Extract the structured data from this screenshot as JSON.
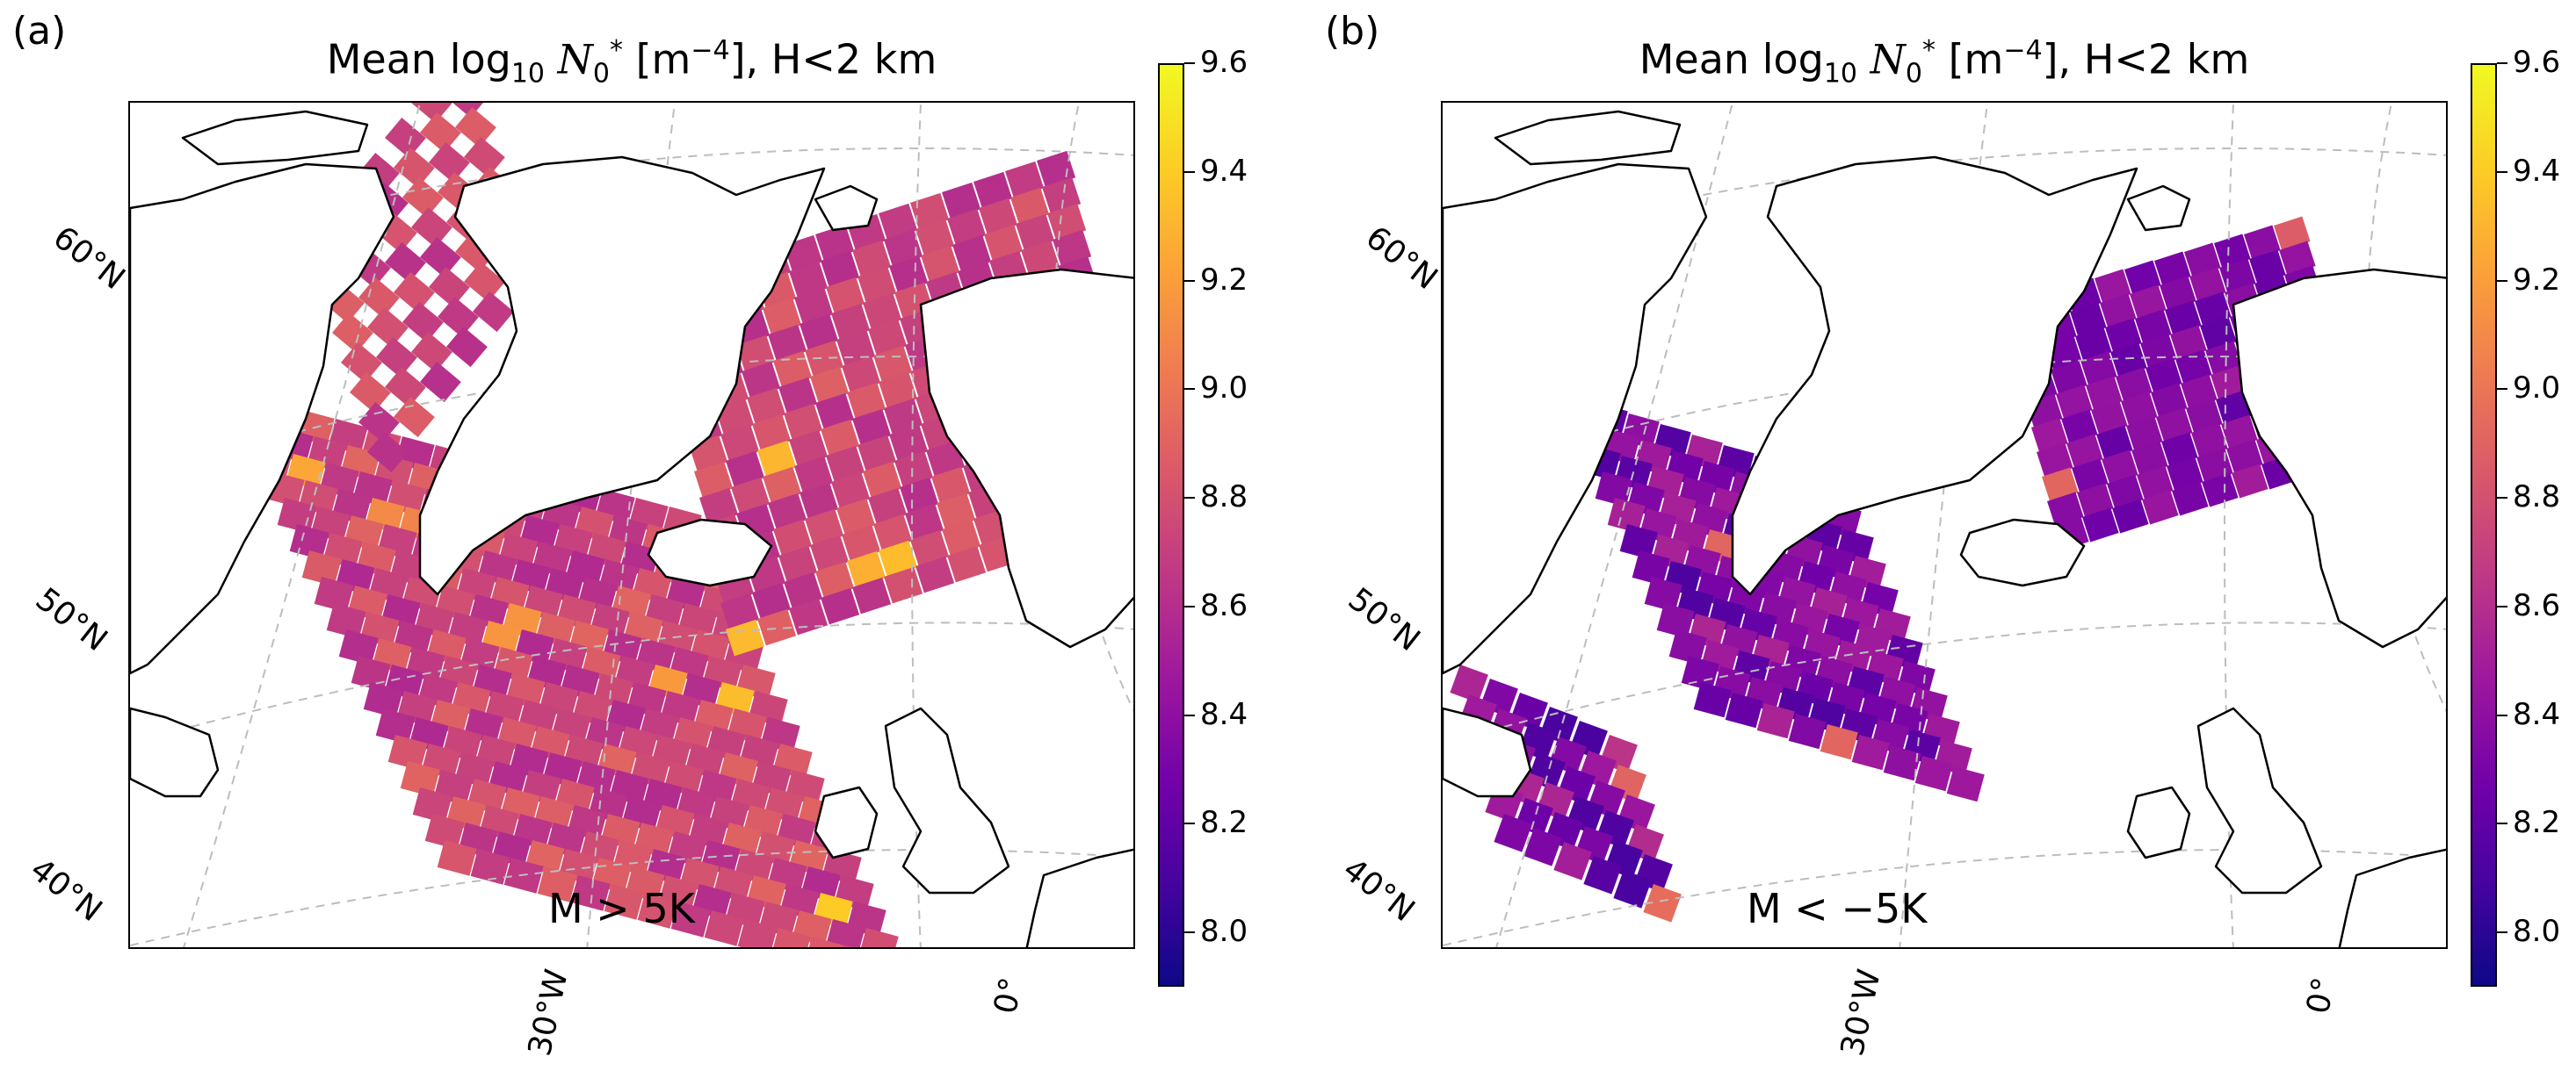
{
  "colors": {
    "low": "#0d0887",
    "mid": "#cc4778",
    "high": "#f0f921",
    "coastline": "#000000",
    "graticule": "#bdbdbd"
  },
  "colorbar": {
    "min": 7.9,
    "max": 9.6,
    "ticks": [
      "8.0",
      "8.2",
      "8.4",
      "8.6",
      "8.8",
      "9.0",
      "9.2",
      "9.4",
      "9.6"
    ]
  },
  "lat_labels": [
    "60°N",
    "50°N",
    "40°N"
  ],
  "lon_labels": [
    "30°W",
    "0°"
  ],
  "panels": [
    {
      "letter": "(a)",
      "title_prefix": "Mean log",
      "title_sub": "10",
      "title_var": "N",
      "title_var_sub": "0",
      "title_var_sup": "*",
      "title_unit_open": " [m",
      "title_unit_sup": "−4",
      "title_suffix": "], H<2 km",
      "condition": "M > 5K",
      "level": 8.75
    },
    {
      "letter": "(b)",
      "title_prefix": "Mean log",
      "title_sub": "10",
      "title_var": "N",
      "title_var_sub": "0",
      "title_var_sup": "*",
      "title_unit_open": " [m",
      "title_unit_sup": "−4",
      "title_suffix": "], H<2 km",
      "condition": "M < −5K",
      "level": 8.35
    }
  ]
}
